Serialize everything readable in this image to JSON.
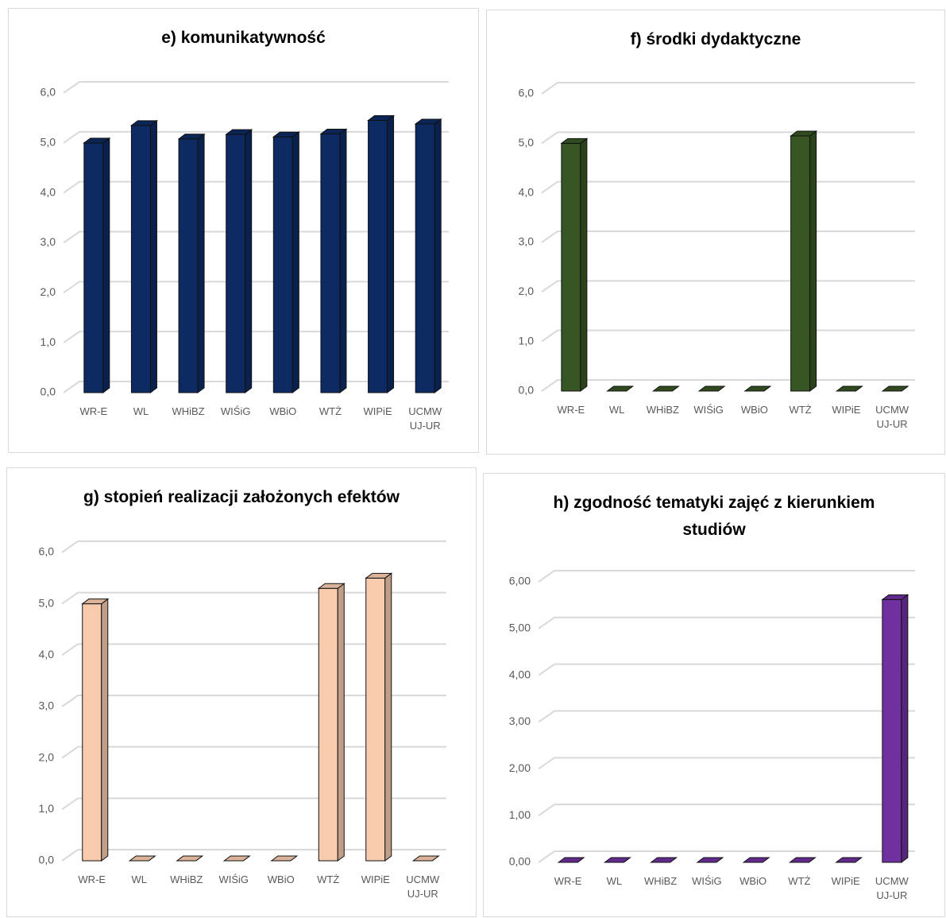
{
  "chart_data": [
    {
      "type": "bar",
      "title": "e) komunikatywność",
      "color": "#0d2a63",
      "categories": [
        "WR-E",
        "WL",
        "WHiBZ",
        "WIŚiG",
        "WBiO",
        "WTŻ",
        "WIPiE",
        "UCMW UJ-UR"
      ],
      "values": [
        5.0,
        5.35,
        5.08,
        5.17,
        5.12,
        5.18,
        5.45,
        5.38
      ],
      "ylim": [
        0,
        6
      ],
      "yticks": [
        {
          "value": 0,
          "label": "0,0"
        },
        {
          "value": 1,
          "label": "1,0"
        },
        {
          "value": 2,
          "label": "2,0"
        },
        {
          "value": 3,
          "label": "3,0"
        },
        {
          "value": 4,
          "label": "4,0"
        },
        {
          "value": 5,
          "label": "5,0"
        },
        {
          "value": 6,
          "label": "6,0"
        }
      ],
      "grid": true
    },
    {
      "type": "bar",
      "title": "f) środki dydaktyczne",
      "color": "#375623",
      "categories": [
        "WR-E",
        "WL",
        "WHiBZ",
        "WIŚiG",
        "WBiO",
        "WTŻ",
        "WIPiE",
        "UCMW UJ-UR"
      ],
      "values": [
        5.0,
        0,
        0,
        0,
        0,
        5.15,
        0,
        0
      ],
      "ylim": [
        0,
        6
      ],
      "yticks": [
        {
          "value": 0,
          "label": "0,0"
        },
        {
          "value": 1,
          "label": "1,0"
        },
        {
          "value": 2,
          "label": "2,0"
        },
        {
          "value": 3,
          "label": "3,0"
        },
        {
          "value": 4,
          "label": "4,0"
        },
        {
          "value": 5,
          "label": "5,0"
        },
        {
          "value": 6,
          "label": "6,0"
        }
      ],
      "grid": true
    },
    {
      "type": "bar",
      "title": "g) stopień realizacji założonych efektów",
      "color": "#f8cbad",
      "categories": [
        "WR-E",
        "WL",
        "WHiBZ",
        "WIŚiG",
        "WBiO",
        "WTŻ",
        "WIPiE",
        "UCMW UJ-UR"
      ],
      "values": [
        5.0,
        0,
        0,
        0,
        0,
        5.3,
        5.5,
        0
      ],
      "ylim": [
        0,
        6
      ],
      "yticks": [
        {
          "value": 0,
          "label": "0,0"
        },
        {
          "value": 1,
          "label": "1,0"
        },
        {
          "value": 2,
          "label": "2,0"
        },
        {
          "value": 3,
          "label": "3,0"
        },
        {
          "value": 4,
          "label": "4,0"
        },
        {
          "value": 5,
          "label": "5,0"
        },
        {
          "value": 6,
          "label": "6,0"
        }
      ],
      "grid": true
    },
    {
      "type": "bar",
      "title": "h) zgodność tematyki zajęć z kierunkiem studiów",
      "color": "#7030a0",
      "categories": [
        "WR-E",
        "WL",
        "WHiBZ",
        "WIŚiG",
        "WBiO",
        "WTŻ",
        "WIPiE",
        "UCMW UJ-UR"
      ],
      "values": [
        0,
        0,
        0,
        0,
        0,
        0,
        0,
        5.62
      ],
      "ylim": [
        0,
        6
      ],
      "yticks": [
        {
          "value": 0,
          "label": "0,00"
        },
        {
          "value": 1,
          "label": "1,00"
        },
        {
          "value": 2,
          "label": "2,00"
        },
        {
          "value": 3,
          "label": "3,00"
        },
        {
          "value": 4,
          "label": "4,00"
        },
        {
          "value": 5,
          "label": "5,00"
        },
        {
          "value": 6,
          "label": "6,00"
        }
      ],
      "grid": true
    }
  ]
}
